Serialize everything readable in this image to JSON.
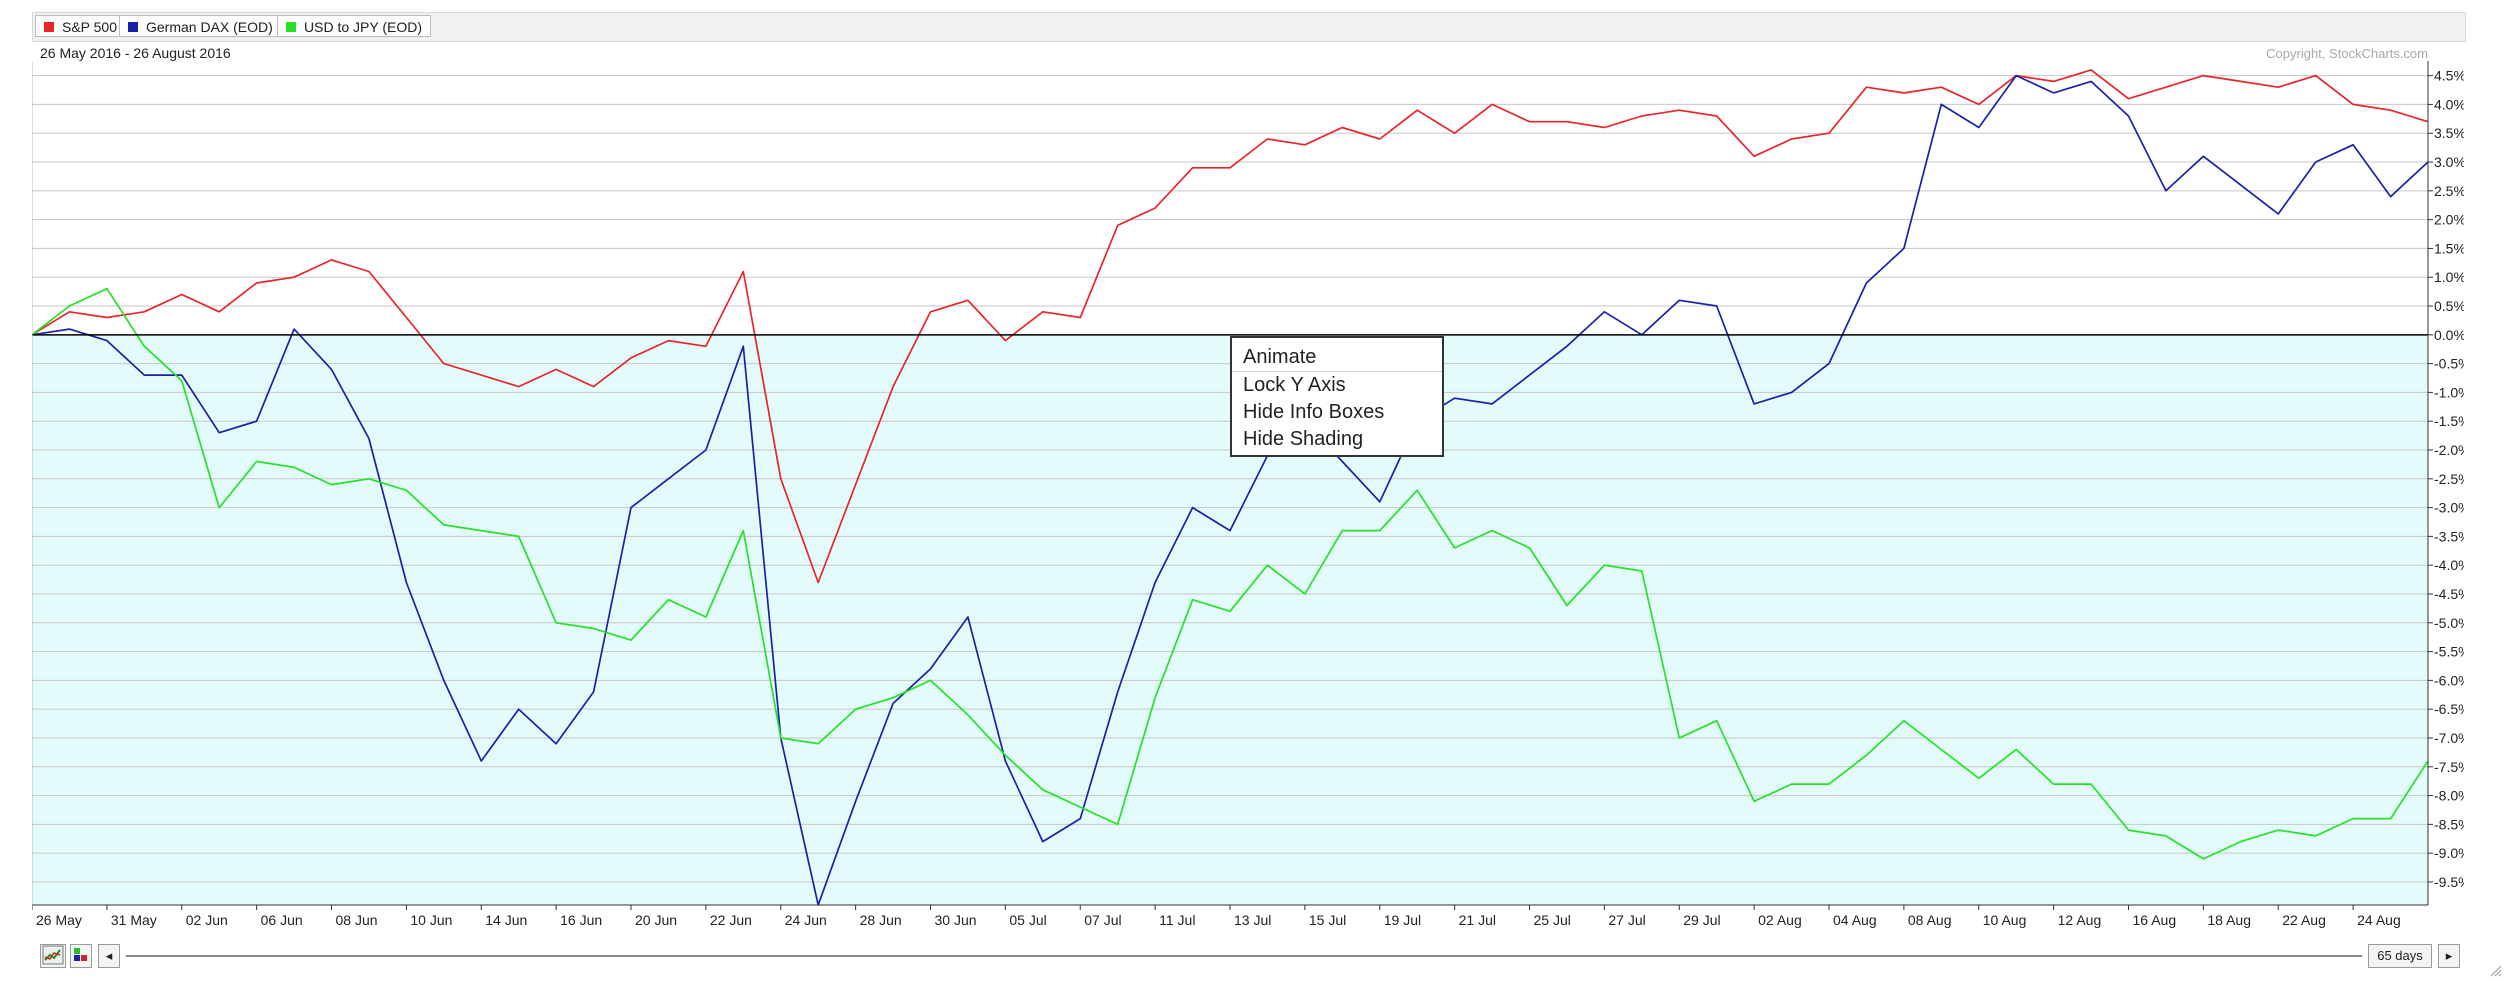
{
  "legend": [
    {
      "label": "S&P 500",
      "color": "#e8252b"
    },
    {
      "label": "German DAX (EOD)",
      "color": "#1a21a8"
    },
    {
      "label": "USD to JPY (EOD)",
      "color": "#28e028"
    }
  ],
  "date_range": "26 May 2016 - 26 August 2016",
  "copyright": "Copyright, StockCharts.com",
  "context_menu": [
    "Animate",
    "Lock Y Axis",
    "Hide Info Boxes",
    "Hide Shading"
  ],
  "bottom": {
    "prev_label": "◂",
    "next_label": "▸",
    "period_label": "65 days",
    "chart_type_icon": "line-chart-icon",
    "color_icon": "color-squares-icon"
  },
  "colors": {
    "shade_negative": "#e3fbfb",
    "zero_line": "#000000",
    "gridline": "#c7c7c7"
  },
  "chart_data": {
    "type": "line",
    "xlabel": "",
    "ylabel": "",
    "ylim": [
      -9.9,
      4.65
    ],
    "y_ticks": [
      "4.5%",
      "4.0%",
      "3.5%",
      "3.0%",
      "2.5%",
      "2.0%",
      "1.5%",
      "1.0%",
      "0.5%",
      "0.0%",
      "-0.5%",
      "-1.0%",
      "-1.5%",
      "-2.0%",
      "-2.5%",
      "-3.0%",
      "-3.5%",
      "-4.0%",
      "-4.5%",
      "-5.0%",
      "-5.5%",
      "-6.0%",
      "-6.5%",
      "-7.0%",
      "-7.5%",
      "-8.0%",
      "-8.5%",
      "-9.0%",
      "-9.5%"
    ],
    "y_tick_values": [
      4.5,
      4.0,
      3.5,
      3.0,
      2.5,
      2.0,
      1.5,
      1.0,
      0.5,
      0.0,
      -0.5,
      -1.0,
      -1.5,
      -2.0,
      -2.5,
      -3.0,
      -3.5,
      -4.0,
      -4.5,
      -5.0,
      -5.5,
      -6.0,
      -6.5,
      -7.0,
      -7.5,
      -8.0,
      -8.5,
      -9.0,
      -9.5
    ],
    "x_ticks": [
      "26 May",
      "31 May",
      "02 Jun",
      "06 Jun",
      "08 Jun",
      "10 Jun",
      "14 Jun",
      "16 Jun",
      "20 Jun",
      "22 Jun",
      "24 Jun",
      "28 Jun",
      "30 Jun",
      "05 Jul",
      "07 Jul",
      "11 Jul",
      "13 Jul",
      "15 Jul",
      "19 Jul",
      "21 Jul",
      "25 Jul",
      "27 Jul",
      "29 Jul",
      "02 Aug",
      "04 Aug",
      "08 Aug",
      "10 Aug",
      "12 Aug",
      "16 Aug",
      "18 Aug",
      "22 Aug",
      "24 Aug"
    ],
    "x_tick_index": [
      0,
      2,
      4,
      6,
      8,
      10,
      12,
      14,
      16,
      18,
      20,
      22,
      24,
      26,
      28,
      30,
      32,
      34,
      36,
      38,
      40,
      42,
      44,
      46,
      48,
      50,
      52,
      54,
      56,
      58,
      60,
      62
    ],
    "n_points": 65,
    "series": [
      {
        "name": "S&P 500",
        "color": "#e8252b",
        "values": [
          0.0,
          0.4,
          0.3,
          0.4,
          0.7,
          0.4,
          0.9,
          1.0,
          1.3,
          1.1,
          0.3,
          -0.5,
          -0.7,
          -0.9,
          -0.6,
          -0.9,
          -0.4,
          -0.1,
          -0.2,
          1.1,
          -2.5,
          -4.3,
          -2.6,
          -0.9,
          0.4,
          0.6,
          -0.1,
          0.4,
          0.3,
          1.9,
          2.2,
          2.9,
          2.9,
          3.4,
          3.3,
          3.6,
          3.4,
          3.9,
          3.5,
          4.0,
          3.7,
          3.7,
          3.6,
          3.8,
          3.9,
          3.8,
          3.1,
          3.4,
          3.5,
          4.3,
          4.2,
          4.3,
          4.0,
          4.5,
          4.4,
          4.6,
          4.1,
          4.3,
          4.5,
          4.4,
          4.3,
          4.5,
          4.0,
          3.9,
          3.7
        ]
      },
      {
        "name": "German DAX (EOD)",
        "color": "#1a21a8",
        "values": [
          0.0,
          0.1,
          -0.1,
          -0.7,
          -0.7,
          -1.7,
          -1.5,
          0.1,
          -0.6,
          -1.8,
          -4.3,
          -6.0,
          -7.4,
          -6.5,
          -7.1,
          -6.2,
          -3.0,
          -2.5,
          -2.0,
          -0.2,
          -7.0,
          -9.9,
          -8.1,
          -6.4,
          -5.8,
          -4.9,
          -7.4,
          -8.8,
          -8.4,
          -6.2,
          -4.3,
          -3.0,
          -3.4,
          -2.1,
          -1.5,
          -2.2,
          -2.9,
          -1.5,
          -1.1,
          -1.2,
          -0.7,
          -0.2,
          0.4,
          0.0,
          0.6,
          0.5,
          -1.2,
          -1.0,
          -0.5,
          0.9,
          1.5,
          4.0,
          3.6,
          4.5,
          4.2,
          4.4,
          3.8,
          2.5,
          3.1,
          2.6,
          2.1,
          3.0,
          3.3,
          2.4,
          3.0
        ]
      },
      {
        "name": "USD to JPY (EOD)",
        "color": "#28e028",
        "values": [
          0.0,
          0.5,
          0.8,
          -0.2,
          -0.8,
          -3.0,
          -2.2,
          -2.3,
          -2.6,
          -2.5,
          -2.7,
          -3.3,
          -3.4,
          -3.5,
          -5.0,
          -5.1,
          -5.3,
          -4.6,
          -4.9,
          -3.4,
          -7.0,
          -7.1,
          -6.5,
          -6.3,
          -6.0,
          -6.6,
          -7.3,
          -7.9,
          -8.2,
          -8.5,
          -6.3,
          -4.6,
          -4.8,
          -4.0,
          -4.5,
          -3.4,
          -3.4,
          -2.7,
          -3.7,
          -3.4,
          -3.7,
          -4.7,
          -4.0,
          -4.1,
          -7.0,
          -6.7,
          -8.1,
          -7.8,
          -7.8,
          -7.3,
          -6.7,
          -7.2,
          -7.7,
          -7.2,
          -7.8,
          -7.8,
          -8.6,
          -8.7,
          -9.1,
          -8.8,
          -8.6,
          -8.7,
          -8.4,
          -8.4,
          -7.4
        ]
      }
    ]
  }
}
